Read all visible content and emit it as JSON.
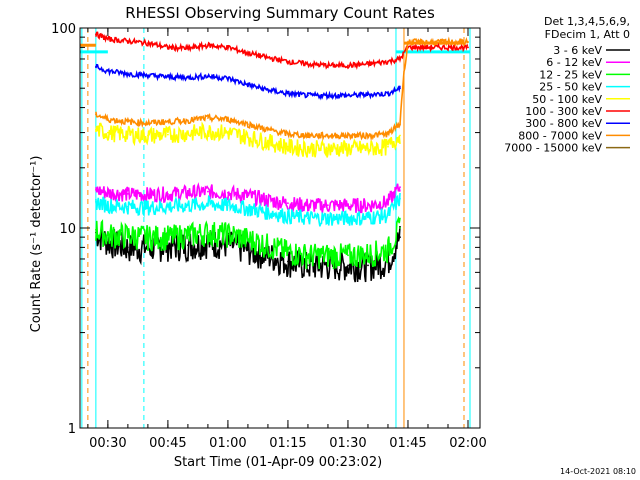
{
  "chart_data": {
    "type": "line",
    "title": "RHESSI Observing Summary Count Rates",
    "xlabel": "Start Time (01-Apr-09 00:23:02)",
    "ylabel": "Count Rate (s⁻¹ detector⁻¹)",
    "yscale": "log",
    "ylim": [
      1,
      100
    ],
    "xlim": [
      "00:23:02",
      "02:03:00"
    ],
    "x_ticks": [
      "00:30",
      "00:45",
      "01:00",
      "01:15",
      "01:30",
      "01:45",
      "02:00"
    ],
    "y_ticks": [
      "1",
      "10",
      "100"
    ],
    "legend_header": [
      "Det 1,3,4,5,6,9,",
      "FDecim 1, Att 0"
    ],
    "legend_position": "top-right",
    "grid": false,
    "series": [
      {
        "name": "3 - 6 keV",
        "color": "#000000",
        "x": [
          "00:27",
          "00:30",
          "00:35",
          "00:40",
          "00:45",
          "00:50",
          "00:55",
          "01:00",
          "01:05",
          "01:10",
          "01:15",
          "01:20",
          "01:25",
          "01:30",
          "01:35",
          "01:40",
          "01:43"
        ],
        "y": [
          9.5,
          8.5,
          8,
          8,
          8.2,
          8.2,
          8.5,
          8.3,
          7.8,
          7.3,
          6.8,
          6.5,
          6.5,
          6.5,
          6.5,
          6.8,
          9
        ]
      },
      {
        "name": "6 - 12 keV",
        "color": "#ff00ff",
        "x": [
          "00:27",
          "00:30",
          "00:35",
          "00:40",
          "00:45",
          "00:50",
          "00:55",
          "01:00",
          "01:05",
          "01:10",
          "01:15",
          "01:20",
          "01:25",
          "01:30",
          "01:35",
          "01:40",
          "01:43"
        ],
        "y": [
          15.5,
          15,
          14.8,
          14.7,
          14.8,
          15,
          15.2,
          15,
          14.5,
          13.8,
          13.3,
          13,
          13,
          13,
          13,
          13.5,
          16
        ]
      },
      {
        "name": "12 - 25 keV",
        "color": "#00ff00",
        "x": [
          "00:27",
          "00:30",
          "00:35",
          "00:40",
          "00:45",
          "00:50",
          "00:55",
          "01:00",
          "01:05",
          "01:10",
          "01:15",
          "01:20",
          "01:25",
          "01:30",
          "01:35",
          "01:40",
          "01:43"
        ],
        "y": [
          9.8,
          9.2,
          9.2,
          9,
          9,
          9.2,
          9.5,
          9.3,
          8.8,
          8.2,
          7.6,
          7.3,
          7.3,
          7.3,
          7.4,
          7.8,
          10
        ]
      },
      {
        "name": "25 - 50 keV",
        "color": "#00ffff",
        "x": [
          "00:27",
          "00:30",
          "00:35",
          "00:40",
          "00:45",
          "00:50",
          "00:55",
          "01:00",
          "01:05",
          "01:10",
          "01:15",
          "01:20",
          "01:25",
          "01:30",
          "01:35",
          "01:40",
          "01:43"
        ],
        "y": [
          13.5,
          13,
          12.8,
          12.7,
          12.8,
          13,
          13.2,
          13,
          12.5,
          12,
          11.5,
          11.2,
          11.2,
          11.2,
          11.3,
          11.6,
          14
        ]
      },
      {
        "name": "50 - 100 keV",
        "color": "#ffff00",
        "x": [
          "00:27",
          "00:30",
          "00:35",
          "00:40",
          "00:45",
          "00:50",
          "00:55",
          "01:00",
          "01:05",
          "01:10",
          "01:15",
          "01:20",
          "01:25",
          "01:30",
          "01:35",
          "01:40",
          "01:43"
        ],
        "y": [
          31,
          30,
          29.5,
          29,
          29.3,
          29.8,
          30.5,
          30,
          28.5,
          27,
          25.5,
          25,
          25,
          25,
          25,
          25.5,
          29
        ]
      },
      {
        "name": "100 - 300 keV",
        "color": "#ff0000",
        "x": [
          "00:27",
          "00:30",
          "00:35",
          "00:40",
          "00:45",
          "00:50",
          "00:55",
          "01:00",
          "01:05",
          "01:10",
          "01:15",
          "01:20",
          "01:25",
          "01:30",
          "01:35",
          "01:40",
          "01:43",
          "01:45",
          "02:00"
        ],
        "y": [
          93,
          88,
          86,
          84,
          80,
          79,
          82,
          80,
          75,
          71,
          68,
          66,
          65,
          65,
          66,
          68,
          70,
          80,
          80
        ]
      },
      {
        "name": "300 - 800 keV",
        "color": "#0000ff",
        "x": [
          "00:27",
          "00:30",
          "00:35",
          "00:40",
          "00:45",
          "00:50",
          "00:55",
          "01:00",
          "01:05",
          "01:10",
          "01:15",
          "01:20",
          "01:25",
          "01:30",
          "01:35",
          "01:40",
          "01:43"
        ],
        "y": [
          64,
          61,
          59,
          58,
          57,
          56.5,
          57.5,
          56,
          52,
          49,
          47,
          46,
          46,
          46,
          46.5,
          47,
          50
        ]
      },
      {
        "name": "800 - 7000 keV",
        "color": "#ff8c00",
        "x": [
          "00:27",
          "00:30",
          "00:35",
          "00:40",
          "00:45",
          "00:50",
          "00:55",
          "01:00",
          "01:05",
          "01:10",
          "01:15",
          "01:20",
          "01:25",
          "01:30",
          "01:35",
          "01:40",
          "01:43",
          "01:45",
          "02:00"
        ],
        "y": [
          37,
          35,
          34,
          33.5,
          34,
          34.5,
          35.5,
          35,
          33,
          31,
          29.5,
          29,
          29,
          29,
          29,
          29.5,
          33,
          85,
          85
        ]
      },
      {
        "name": "7000 - 15000 keV",
        "color": "#8b6914",
        "x": [],
        "y": []
      }
    ],
    "vertical_lines": [
      {
        "x": "00:23:30",
        "color": "#00ffff",
        "style": "solid"
      },
      {
        "x": "00:25:00",
        "color": "#ff8c00",
        "style": "dashed"
      },
      {
        "x": "00:27:00",
        "color": "#00ffff",
        "style": "solid"
      },
      {
        "x": "00:39:00",
        "color": "#00ffff",
        "style": "dashed"
      },
      {
        "x": "01:42:00",
        "color": "#00ffff",
        "style": "solid"
      },
      {
        "x": "01:44:00",
        "color": "#ff8c00",
        "style": "solid"
      },
      {
        "x": "01:59:00",
        "color": "#ff8c00",
        "style": "dashed"
      },
      {
        "x": "02:00:30",
        "color": "#00ffff",
        "style": "solid"
      }
    ],
    "horizontal_segments": [
      {
        "x_start": "00:23:02",
        "x_end": "00:27:00",
        "y": 82,
        "color": "#ff8c00"
      },
      {
        "x_start": "00:23:02",
        "x_end": "00:30:00",
        "y": 76,
        "color": "#00ffff"
      },
      {
        "x_start": "01:42:00",
        "x_end": "02:00:30",
        "y": 76,
        "color": "#00ffff"
      },
      {
        "x_start": "01:44:00",
        "x_end": "01:59:00",
        "y": 84,
        "color": "#ff8c00"
      }
    ]
  },
  "timestamp": "14-Oct-2021 08:10"
}
